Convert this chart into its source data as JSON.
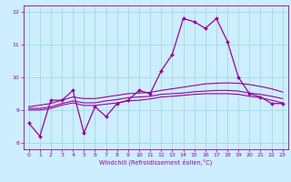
{
  "title": "",
  "xlabel": "Windchill (Refroidissement éolien,°C)",
  "ylabel": "",
  "background_color": "#cceeff",
  "grid_color": "#aadddd",
  "line_color": "#990099",
  "hours": [
    0,
    1,
    2,
    3,
    4,
    5,
    6,
    7,
    8,
    9,
    10,
    11,
    12,
    13,
    14,
    15,
    16,
    17,
    18,
    19,
    20,
    21,
    22,
    23
  ],
  "series1": [
    8.6,
    8.2,
    9.3,
    9.3,
    9.6,
    8.3,
    9.1,
    8.8,
    9.2,
    9.3,
    9.6,
    9.5,
    10.2,
    10.7,
    11.8,
    11.7,
    11.5,
    11.8,
    11.1,
    10.0,
    9.5,
    9.4,
    9.2,
    9.2
  ],
  "series2": [
    9.1,
    9.15,
    9.2,
    9.3,
    9.4,
    9.35,
    9.35,
    9.4,
    9.45,
    9.5,
    9.52,
    9.54,
    9.6,
    9.65,
    9.7,
    9.75,
    9.8,
    9.82,
    9.83,
    9.82,
    9.78,
    9.72,
    9.65,
    9.55
  ],
  "series3": [
    9.05,
    9.05,
    9.1,
    9.2,
    9.28,
    9.22,
    9.22,
    9.28,
    9.32,
    9.38,
    9.4,
    9.42,
    9.48,
    9.5,
    9.52,
    9.56,
    9.58,
    9.6,
    9.6,
    9.58,
    9.52,
    9.48,
    9.42,
    9.35
  ],
  "series4": [
    9.0,
    9.0,
    9.05,
    9.15,
    9.22,
    9.14,
    9.14,
    9.18,
    9.22,
    9.28,
    9.3,
    9.34,
    9.4,
    9.42,
    9.45,
    9.48,
    9.5,
    9.5,
    9.5,
    9.48,
    9.42,
    9.38,
    9.3,
    9.22
  ],
  "ylim": [
    7.8,
    12.2
  ],
  "yticks": [
    8,
    9,
    10,
    11,
    12
  ],
  "xlim": [
    -0.5,
    23.5
  ],
  "xticks": [
    0,
    1,
    2,
    3,
    4,
    5,
    6,
    7,
    8,
    9,
    10,
    11,
    12,
    13,
    14,
    15,
    16,
    17,
    18,
    19,
    20,
    21,
    22,
    23
  ]
}
